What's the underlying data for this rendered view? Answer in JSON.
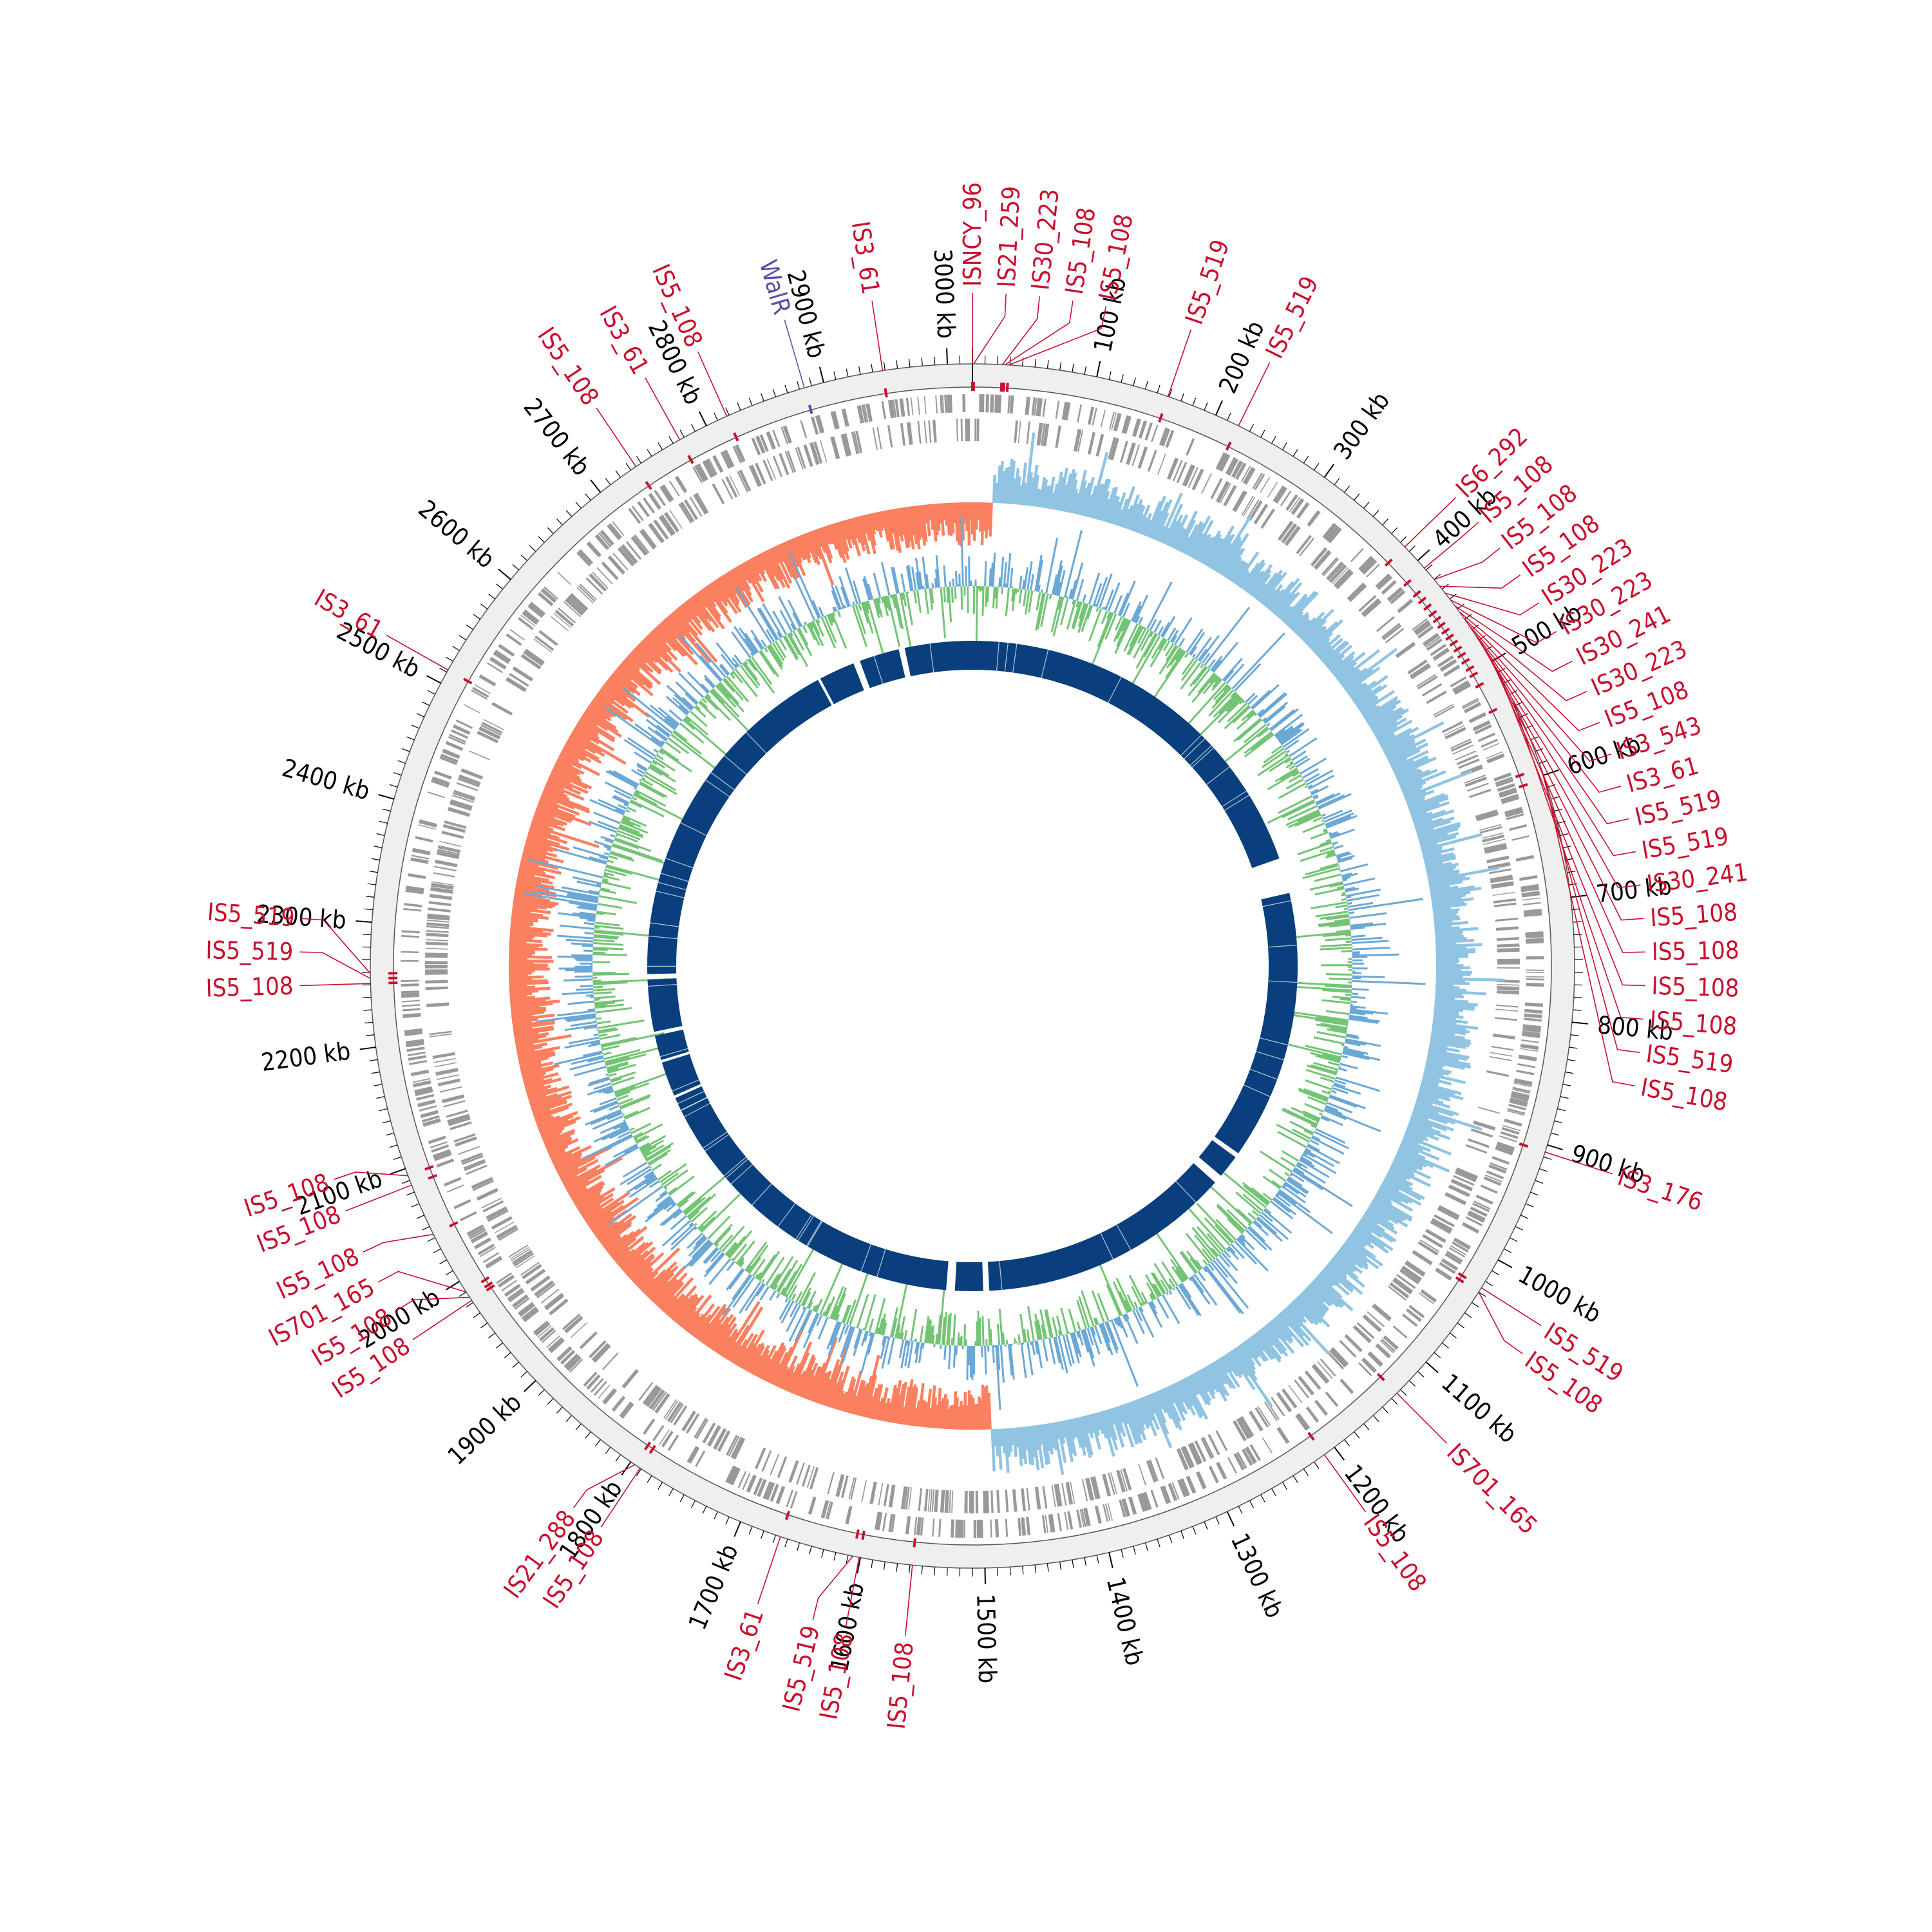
{
  "chart_data": {
    "type": "circular-genome-map",
    "genome_length_kb": 3020,
    "axis": {
      "major_ticks_kb": [
        100,
        200,
        300,
        400,
        500,
        600,
        700,
        800,
        900,
        1000,
        1100,
        1200,
        1300,
        1400,
        1500,
        1600,
        1700,
        1800,
        1900,
        2000,
        2100,
        2200,
        2300,
        2400,
        2500,
        2600,
        2700,
        2800,
        2900,
        3000
      ],
      "label_suffix": " kb",
      "minor_tick_step_kb": 10
    },
    "colors": {
      "is_element": "#c8102e",
      "walr": "#5b4ea8",
      "axis": "#000000",
      "backbone": "#efefef",
      "cds": "#999999",
      "gc_skew_negative": "#fa8060",
      "gc_skew_positive": "#90c4e2",
      "gc_content_high": "#6ca8d6",
      "gc_content_low": "#74c476",
      "synteny": "#0a3f7d"
    },
    "annotations": [
      {
        "label": "ISNCY_96",
        "kb": 0,
        "color": "#c8102e"
      },
      {
        "label": "IS21_259",
        "kb": 1,
        "color": "#c8102e"
      },
      {
        "label": "IS30_223",
        "kb": 24,
        "color": "#c8102e"
      },
      {
        "label": "IS5_108",
        "kb": 26,
        "color": "#c8102e"
      },
      {
        "label": "IS5_108",
        "kb": 29,
        "color": "#c8102e"
      },
      {
        "label": "IS5_519",
        "kb": 159,
        "color": "#c8102e"
      },
      {
        "label": "IS5_519",
        "kb": 220,
        "color": "#c8102e"
      },
      {
        "label": "IS6_292",
        "kb": 385,
        "color": "#c8102e"
      },
      {
        "label": "IS5_108",
        "kb": 408,
        "color": "#c8102e"
      },
      {
        "label": "IS5_108",
        "kb": 420,
        "color": "#c8102e"
      },
      {
        "label": "IS5_108",
        "kb": 427,
        "color": "#c8102e"
      },
      {
        "label": "IS30_223",
        "kb": 434,
        "color": "#c8102e"
      },
      {
        "label": "IS30_223",
        "kb": 441,
        "color": "#c8102e"
      },
      {
        "label": "IS30_241",
        "kb": 447,
        "color": "#c8102e"
      },
      {
        "label": "IS30_223",
        "kb": 453,
        "color": "#c8102e"
      },
      {
        "label": "IS5_108",
        "kb": 459,
        "color": "#c8102e"
      },
      {
        "label": "IS3_543",
        "kb": 465,
        "color": "#c8102e"
      },
      {
        "label": "IS3_61",
        "kb": 471,
        "color": "#c8102e"
      },
      {
        "label": "IS5_519",
        "kb": 477,
        "color": "#c8102e"
      },
      {
        "label": "IS5_519",
        "kb": 483,
        "color": "#c8102e"
      },
      {
        "label": "IS30_241",
        "kb": 489,
        "color": "#c8102e"
      },
      {
        "label": "IS5_108",
        "kb": 496,
        "color": "#c8102e"
      },
      {
        "label": "IS5_108",
        "kb": 502,
        "color": "#c8102e"
      },
      {
        "label": "IS5_108",
        "kb": 512,
        "color": "#c8102e"
      },
      {
        "label": "IS5_108",
        "kb": 536,
        "color": "#c8102e"
      },
      {
        "label": "IS5_519",
        "kb": 594,
        "color": "#c8102e"
      },
      {
        "label": "IS5_108",
        "kb": 603,
        "color": "#c8102e"
      },
      {
        "label": "IS3_176",
        "kb": 906,
        "color": "#c8102e"
      },
      {
        "label": "IS5_519",
        "kb": 1026,
        "color": "#c8102e"
      },
      {
        "label": "IS5_108",
        "kb": 1030,
        "color": "#c8102e"
      },
      {
        "label": "IS701_165",
        "kb": 1134,
        "color": "#c8102e"
      },
      {
        "label": "IS5_108",
        "kb": 1210,
        "color": "#c8102e"
      },
      {
        "label": "IS5_108",
        "kb": 1558,
        "color": "#c8102e"
      },
      {
        "label": "IS5_108",
        "kb": 1601,
        "color": "#c8102e"
      },
      {
        "label": "IS5_519",
        "kb": 1606,
        "color": "#c8102e"
      },
      {
        "label": "IS3_61",
        "kb": 1666,
        "color": "#c8102e"
      },
      {
        "label": "IS5_108",
        "kb": 1791,
        "color": "#c8102e"
      },
      {
        "label": "IS21_288",
        "kb": 1796,
        "color": "#c8102e"
      },
      {
        "label": "IS5_108",
        "kb": 1985,
        "color": "#c8102e"
      },
      {
        "label": "IS5_108",
        "kb": 1982,
        "color": "#c8102e"
      },
      {
        "label": "IS701_165",
        "kb": 1990,
        "color": "#c8102e"
      },
      {
        "label": "IS5_108",
        "kb": 2043,
        "color": "#c8102e"
      },
      {
        "label": "IS5_108",
        "kb": 2086,
        "color": "#c8102e"
      },
      {
        "label": "IS5_108",
        "kb": 2094,
        "color": "#c8102e"
      },
      {
        "label": "IS5_108",
        "kb": 2251,
        "color": "#c8102e"
      },
      {
        "label": "IS5_519",
        "kb": 2255,
        "color": "#c8102e"
      },
      {
        "label": "IS5_519",
        "kb": 2259,
        "color": "#c8102e"
      },
      {
        "label": "IS3_61",
        "kb": 2512,
        "color": "#c8102e"
      },
      {
        "label": "IS5_108",
        "kb": 2735,
        "color": "#c8102e"
      },
      {
        "label": "IS3_61",
        "kb": 2776,
        "color": "#c8102e"
      },
      {
        "label": "IS5_108",
        "kb": 2818,
        "color": "#c8102e"
      },
      {
        "label": "WalR",
        "kb": 2884,
        "color": "#5b4ea8"
      },
      {
        "label": "IS3_61",
        "kb": 2948,
        "color": "#c8102e"
      }
    ],
    "synteny_gaps_kb": [
      [
        2910,
        2919
      ],
      [
        2840,
        2850
      ],
      [
        2782,
        2786
      ],
      [
        2245,
        2253
      ],
      [
        2161,
        2167
      ],
      [
        2120,
        2124
      ],
      [
        2064,
        2068
      ],
      [
        1549,
        1536
      ],
      [
        1050,
        1057
      ],
      [
        1092,
        1105
      ],
      [
        593,
        646
      ],
      [
        1485,
        1494
      ]
    ]
  }
}
